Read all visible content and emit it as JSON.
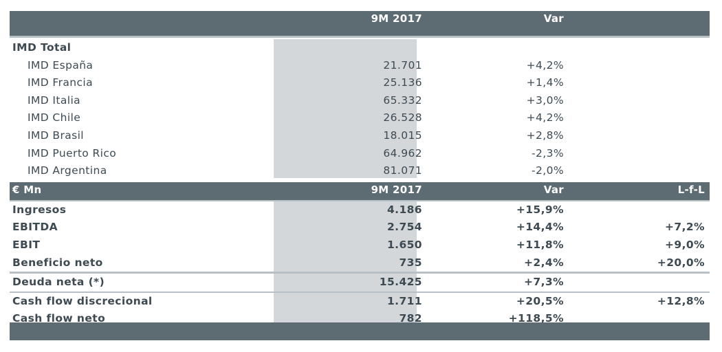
{
  "section1": {
    "header": {
      "col_period": "9M 2017",
      "col_var": "Var"
    },
    "title": "IMD Total",
    "rows": [
      {
        "label": "IMD España",
        "value": "21.701",
        "var": "+4,2%"
      },
      {
        "label": "IMD Francia",
        "value": "25.136",
        "var": "+1,4%"
      },
      {
        "label": "IMD Italia",
        "value": "65.332",
        "var": "+3,0%"
      },
      {
        "label": "IMD Chile",
        "value": "26.528",
        "var": "+4,2%"
      },
      {
        "label": "IMD Brasil",
        "value": "18.015",
        "var": "+2,8%"
      },
      {
        "label": "IMD Puerto Rico",
        "value": "64.962",
        "var": "-2,3%"
      },
      {
        "label": "IMD Argentina",
        "value": "81.071",
        "var": "-2,0%"
      }
    ]
  },
  "section2": {
    "header": {
      "col_unit": "€ Mn",
      "col_period": "9M 2017",
      "col_var": "Var",
      "col_lfl": "L-f-L"
    },
    "rows": [
      {
        "label": "Ingresos",
        "value": "4.186",
        "var": "+15,9%",
        "lfl": ""
      },
      {
        "label": "EBITDA",
        "value": "2.754",
        "var": "+14,4%",
        "lfl": "+7,2%"
      },
      {
        "label": "EBIT",
        "value": "1.650",
        "var": "+11,8%",
        "lfl": "+9,0%"
      },
      {
        "label": "Beneficio neto",
        "value": "735",
        "var": "+2,4%",
        "lfl": "+20,0%"
      },
      {
        "label": "Deuda neta (*)",
        "value": "15.425",
        "var": "+7,3%",
        "lfl": ""
      },
      {
        "label": "Cash flow discrecional",
        "value": "1.711",
        "var": "+20,5%",
        "lfl": "+12,8%"
      },
      {
        "label": "Cash flow neto",
        "value": "782",
        "var": "+118,5%",
        "lfl": ""
      }
    ]
  },
  "colors": {
    "header_bg": "#5d6b72",
    "shaded_column": "#d3d7da",
    "text": "#3d4a52",
    "separator": "#b9c0c5"
  }
}
